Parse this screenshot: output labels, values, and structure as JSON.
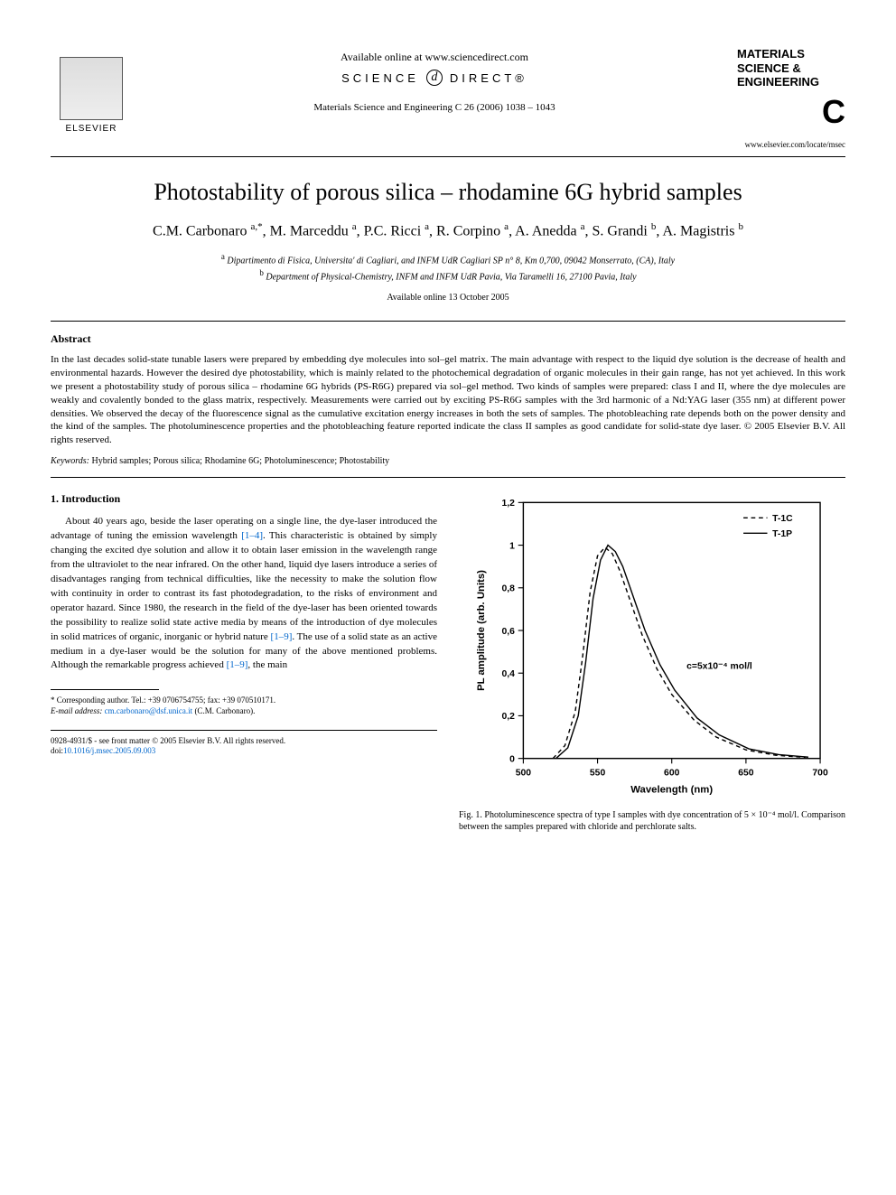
{
  "header": {
    "available_online": "Available online at www.sciencedirect.com",
    "science_direct_left": "SCIENCE",
    "science_direct_right": "DIRECT®",
    "journal_ref": "Materials Science and Engineering C 26 (2006) 1038 – 1043",
    "elsevier_label": "ELSEVIER",
    "journal_name_l1": "MATERIALS",
    "journal_name_l2": "SCIENCE &",
    "journal_name_l3": "ENGINEERING",
    "journal_letter": "C",
    "journal_url": "www.elsevier.com/locate/msec"
  },
  "article": {
    "title": "Photostability of porous silica – rhodamine 6G hybrid samples",
    "authors_html": "C.M. Carbonaro <sup>a,*</sup>, M. Marceddu <sup>a</sup>, P.C. Ricci <sup>a</sup>, R. Corpino <sup>a</sup>, A. Anedda <sup>a</sup>, S. Grandi <sup>b</sup>, A. Magistris <sup>b</sup>",
    "affil_a": "Dipartimento di Fisica, Universita' di Cagliari, and INFM UdR Cagliari SP n° 8, Km 0,700, 09042 Monserrato, (CA), Italy",
    "affil_b": "Department of Physical-Chemistry, INFM and INFM UdR Pavia, Via Taramelli 16, 27100 Pavia, Italy",
    "available_date": "Available online 13 October 2005"
  },
  "abstract": {
    "heading": "Abstract",
    "body": "In the last decades solid-state tunable lasers were prepared by embedding dye molecules into sol–gel matrix. The main advantage with respect to the liquid dye solution is the decrease of health and environmental hazards. However the desired dye photostability, which is mainly related to the photochemical degradation of organic molecules in their gain range, has not yet achieved. In this work we present a photostability study of porous silica – rhodamine 6G hybrids (PS-R6G) prepared via sol–gel method. Two kinds of samples were prepared: class I and II, where the dye molecules are weakly and covalently bonded to the glass matrix, respectively. Measurements were carried out by exciting PS-R6G samples with the 3rd harmonic of a Nd:YAG laser (355 nm) at different power densities. We observed the decay of the fluorescence signal as the cumulative excitation energy increases in both the sets of samples. The photobleaching rate depends both on the power density and the kind of the samples. The photoluminescence properties and the photobleaching feature reported indicate the class II samples as good candidate for solid-state dye laser.",
    "copyright": "© 2005 Elsevier B.V. All rights reserved.",
    "keywords_label": "Keywords:",
    "keywords": "Hybrid samples; Porous silica; Rhodamine 6G; Photoluminescence; Photostability"
  },
  "section1": {
    "heading": "1. Introduction",
    "para1_a": "About 40 years ago, beside the laser operating on a single line, the dye-laser introduced the advantage of tuning the emission wavelength ",
    "cite1": "[1–4]",
    "para1_b": ". This characteristic is obtained by simply changing the excited dye solution and allow it to obtain laser emission in the wavelength range from the ultraviolet to the near infrared. On the other hand, liquid dye lasers introduce a series of disadvantages ranging from technical difficulties, like the necessity to make the solution flow with continuity in order to contrast its fast photodegradation, to the risks of environment and operator hazard. Since 1980, the research in the field of the dye-laser has been oriented towards the possibility to realize solid state active media by means of the introduction of dye molecules in solid matrices of organic, inorganic or hybrid nature ",
    "cite2": "[1–9]",
    "para1_c": ". The use of a solid state as an active medium in a dye-laser would be the solution for many of the above mentioned problems. Although the remarkable progress achieved ",
    "cite3": "[1–9]",
    "para1_d": ", the main"
  },
  "footnote": {
    "corr": "* Corresponding author. Tel.: +39 0706754755; fax: +39 070510171.",
    "email_label": "E-mail address:",
    "email": "cm.carbonaro@dsf.unica.it",
    "email_after": " (C.M. Carbonaro)."
  },
  "bottom": {
    "issn": "0928-4931/$ - see front matter © 2005 Elsevier B.V. All rights reserved.",
    "doi_label": "doi:",
    "doi": "10.1016/j.msec.2005.09.003"
  },
  "figure1": {
    "type": "line",
    "xlabel": "Wavelength (nm)",
    "ylabel": "PL amplitude (arb. Units)",
    "xlim": [
      500,
      700
    ],
    "ylim": [
      0,
      1.2
    ],
    "xticks": [
      500,
      550,
      600,
      650,
      700
    ],
    "yticks": [
      0,
      0.2,
      0.4,
      0.6,
      0.8,
      1,
      1.2
    ],
    "ytick_labels": [
      "0",
      "0,2",
      "0,4",
      "0,6",
      "0,8",
      "1",
      "1,2"
    ],
    "legend": [
      "T-1C",
      "T-1P"
    ],
    "legend_styles": [
      "dash",
      "solid"
    ],
    "annotation": "c=5x10⁻⁴ mol/l",
    "annotation_pos_nm": 610,
    "annotation_pos_y": 0.42,
    "background_color": "#ffffff",
    "axis_color": "#000000",
    "line_color": "#000000",
    "line_width": 1.5,
    "tick_fontsize": 11,
    "label_fontsize": 12,
    "label_fontweight": "bold",
    "series_T1C": {
      "style": "dash",
      "x": [
        520,
        528,
        535,
        540,
        545,
        550,
        555,
        560,
        565,
        570,
        575,
        580,
        590,
        600,
        615,
        630,
        650,
        670,
        690
      ],
      "y": [
        0.0,
        0.06,
        0.22,
        0.48,
        0.78,
        0.95,
        0.99,
        0.96,
        0.88,
        0.78,
        0.68,
        0.58,
        0.42,
        0.3,
        0.18,
        0.1,
        0.04,
        0.015,
        0.005
      ]
    },
    "series_T1P": {
      "style": "solid",
      "x": [
        522,
        530,
        537,
        542,
        547,
        552,
        557,
        562,
        567,
        572,
        577,
        582,
        592,
        602,
        617,
        632,
        652,
        672,
        692
      ],
      "y": [
        0.0,
        0.05,
        0.2,
        0.45,
        0.75,
        0.93,
        1.0,
        0.97,
        0.9,
        0.8,
        0.7,
        0.6,
        0.44,
        0.32,
        0.19,
        0.11,
        0.045,
        0.018,
        0.006
      ]
    },
    "caption": "Fig. 1. Photoluminescence spectra of type I samples with dye concentration of 5 × 10⁻⁴ mol/l. Comparison between the samples prepared with chloride and perchlorate salts."
  }
}
